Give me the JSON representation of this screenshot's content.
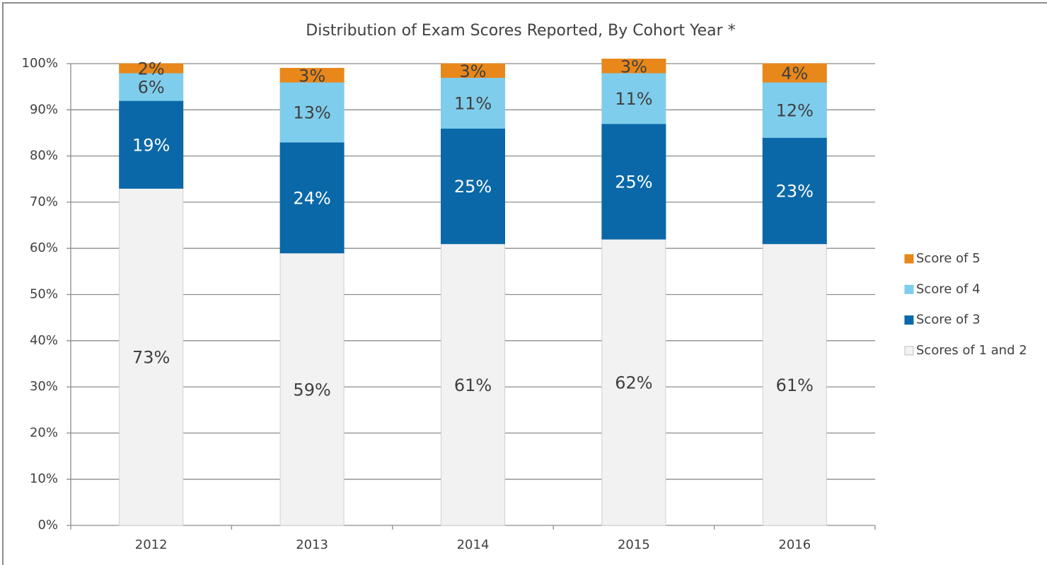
{
  "chart_data": {
    "type": "stacked_bar",
    "title": "Distribution of Exam Scores Reported, By Cohort Year *",
    "categories": [
      "2012",
      "2013",
      "2014",
      "2015",
      "2016"
    ],
    "series": [
      {
        "name": "Scores of 1 and 2",
        "color": "#f2f2f2",
        "values": [
          73,
          59,
          61,
          62,
          61
        ],
        "value_labels": [
          "73%",
          "59%",
          "61%",
          "62%",
          "61%"
        ]
      },
      {
        "name": "Score of 3",
        "color": "#0a68a8",
        "values": [
          19,
          24,
          25,
          25,
          23
        ],
        "value_labels": [
          "19%",
          "24%",
          "25%",
          "25%",
          "23%"
        ]
      },
      {
        "name": "Score of 4",
        "color": "#7fcdec",
        "values": [
          6,
          13,
          11,
          11,
          12
        ],
        "value_labels": [
          "6%",
          "13%",
          "11%",
          "11%",
          "12%"
        ]
      },
      {
        "name": "Score of 5",
        "color": "#e8871a",
        "values": [
          2,
          3,
          3,
          3,
          4
        ],
        "value_labels": [
          "2%",
          "3%",
          "3%",
          "3%",
          "4%"
        ]
      }
    ],
    "ylim": [
      0,
      100
    ],
    "yticks": [
      {
        "value": 0,
        "label": "0%"
      },
      {
        "value": 10,
        "label": "10%"
      },
      {
        "value": 20,
        "label": "20%"
      },
      {
        "value": 30,
        "label": "30%"
      },
      {
        "value": 40,
        "label": "40%"
      },
      {
        "value": 50,
        "label": "50%"
      },
      {
        "value": 60,
        "label": "60%"
      },
      {
        "value": 70,
        "label": "70%"
      },
      {
        "value": 80,
        "label": "80%"
      },
      {
        "value": 90,
        "label": "90%"
      },
      {
        "value": 100,
        "label": "100%"
      }
    ],
    "grid": true,
    "legend": "right"
  }
}
